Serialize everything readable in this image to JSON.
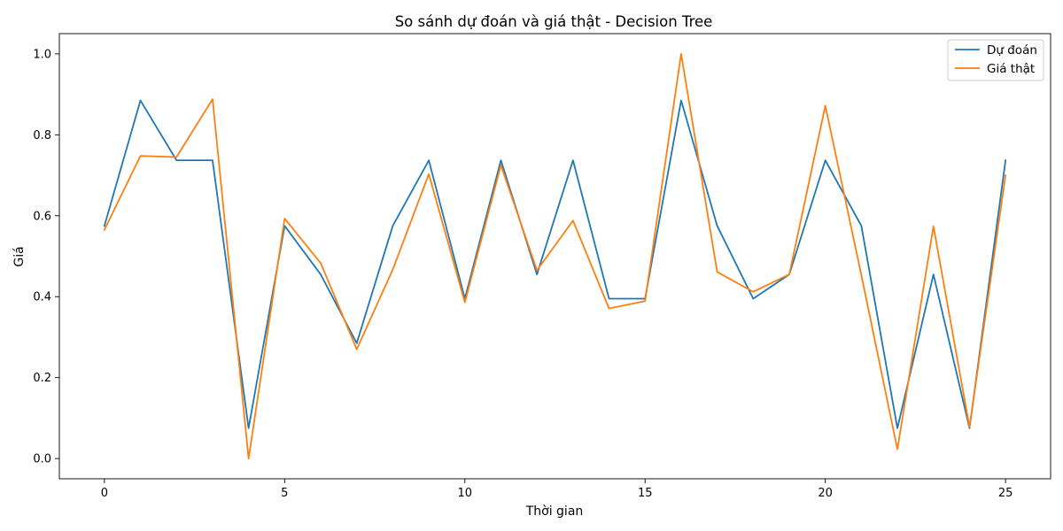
{
  "chart_data": {
    "type": "line",
    "title": "So sánh dự đoán và giá thật - Decision Tree",
    "xlabel": "Thời gian",
    "ylabel": "Giá",
    "xlim": [
      -1.25,
      26.25
    ],
    "ylim": [
      -0.05,
      1.05
    ],
    "xticks": [
      0,
      5,
      10,
      15,
      20,
      25
    ],
    "yticks": [
      0.0,
      0.2,
      0.4,
      0.6,
      0.8,
      1.0
    ],
    "xtick_labels": [
      "0",
      "5",
      "10",
      "15",
      "20",
      "25"
    ],
    "ytick_labels": [
      "0.0",
      "0.2",
      "0.4",
      "0.6",
      "0.8",
      "1.0"
    ],
    "grid": false,
    "legend": "top-right",
    "x": [
      0,
      1,
      2,
      3,
      4,
      5,
      6,
      7,
      8,
      9,
      10,
      11,
      12,
      13,
      14,
      15,
      16,
      17,
      18,
      19,
      20,
      21,
      22,
      23,
      24,
      25
    ],
    "series": [
      {
        "name": "Dự đoán",
        "color": "#1f77b4",
        "values": [
          0.575,
          0.885,
          0.737,
          0.737,
          0.075,
          0.575,
          0.455,
          0.285,
          0.575,
          0.737,
          0.395,
          0.737,
          0.455,
          0.737,
          0.395,
          0.395,
          0.885,
          0.575,
          0.395,
          0.455,
          0.737,
          0.575,
          0.075,
          0.455,
          0.075,
          0.737
        ]
      },
      {
        "name": "Giá thật",
        "color": "#ff7f0e",
        "values": [
          0.565,
          0.748,
          0.745,
          0.888,
          0.0,
          0.593,
          0.483,
          0.27,
          0.467,
          0.703,
          0.386,
          0.725,
          0.465,
          0.588,
          0.371,
          0.389,
          1.0,
          0.461,
          0.412,
          0.455,
          0.872,
          0.453,
          0.023,
          0.574,
          0.078,
          0.7
        ]
      }
    ]
  }
}
